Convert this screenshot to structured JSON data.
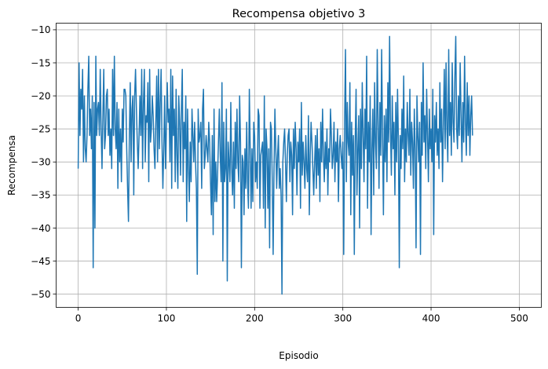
{
  "chart_data": {
    "type": "line",
    "title": "Recompensa objetivo 3",
    "xlabel": "Episodio",
    "ylabel": "Recompensa",
    "xlim": [
      -25,
      525
    ],
    "ylim": [
      -52,
      -9
    ],
    "xticks": [
      0,
      100,
      200,
      300,
      400,
      500
    ],
    "yticks": [
      -50,
      -45,
      -40,
      -35,
      -30,
      -25,
      -20,
      -15,
      -10
    ],
    "xtick_labels": [
      "0",
      "100",
      "200",
      "300",
      "400",
      "500"
    ],
    "ytick_labels": [
      "−50",
      "−45",
      "−40",
      "−35",
      "−30",
      "−25",
      "−20",
      "−15",
      "−10"
    ],
    "grid": true,
    "series": [
      {
        "color": "#1f77b4",
        "values": [
          -31,
          -15,
          -26,
          -19,
          -22,
          -16,
          -30,
          -20,
          -28,
          -30,
          -26,
          -19,
          -14,
          -26,
          -22,
          -28,
          -20,
          -46,
          -21,
          -40,
          -14,
          -26,
          -22,
          -21,
          -26,
          -16,
          -25,
          -31,
          -23,
          -16,
          -28,
          -26,
          -20,
          -19,
          -26,
          -22,
          -29,
          -25,
          -31,
          -16,
          -26,
          -14,
          -25,
          -28,
          -21,
          -34,
          -22,
          -30,
          -25,
          -33,
          -22,
          -27,
          -19,
          -19,
          -20,
          -28,
          -34,
          -39,
          -26,
          -18,
          -30,
          -22,
          -20,
          -35,
          -20,
          -16,
          -22,
          -27,
          -31,
          -26,
          -20,
          -26,
          -16,
          -31,
          -21,
          -16,
          -30,
          -23,
          -24,
          -18,
          -33,
          -16,
          -27,
          -25,
          -20,
          -23,
          -28,
          -31,
          -24,
          -17,
          -30,
          -16,
          -28,
          -21,
          -16,
          -27,
          -34,
          -28,
          -20,
          -31,
          -25,
          -18,
          -24,
          -22,
          -30,
          -16,
          -34,
          -17,
          -26,
          -22,
          -33,
          -19,
          -29,
          -34,
          -20,
          -24,
          -32,
          -22,
          -16,
          -33,
          -24,
          -28,
          -20,
          -39,
          -22,
          -31,
          -36,
          -27,
          -33,
          -22,
          -26,
          -30,
          -24,
          -30,
          -34,
          -47,
          -22,
          -27,
          -26,
          -24,
          -34,
          -22,
          -19,
          -31,
          -29,
          -26,
          -28,
          -30,
          -24,
          -27,
          -33,
          -38,
          -26,
          -41,
          -22,
          -36,
          -30,
          -36,
          -32,
          -27,
          -22,
          -29,
          -33,
          -18,
          -45,
          -24,
          -33,
          -31,
          -22,
          -48,
          -27,
          -30,
          -33,
          -21,
          -31,
          -35,
          -27,
          -37,
          -24,
          -31,
          -22,
          -30,
          -33,
          -20,
          -27,
          -46,
          -29,
          -30,
          -38,
          -28,
          -34,
          -24,
          -33,
          -37,
          -19,
          -28,
          -37,
          -28,
          -36,
          -24,
          -26,
          -33,
          -30,
          -34,
          -22,
          -23,
          -37,
          -29,
          -28,
          -27,
          -37,
          -20,
          -40,
          -25,
          -28,
          -37,
          -28,
          -43,
          -24,
          -25,
          -33,
          -44,
          -31,
          -22,
          -28,
          -34,
          -29,
          -26,
          -34,
          -31,
          -35,
          -50,
          -30,
          -27,
          -25,
          -30,
          -36,
          -29,
          -26,
          -25,
          -33,
          -27,
          -29,
          -38,
          -25,
          -31,
          -24,
          -28,
          -35,
          -27,
          -30,
          -25,
          -37,
          -21,
          -32,
          -27,
          -30,
          -34,
          -26,
          -31,
          -33,
          -23,
          -38,
          -29,
          -24,
          -27,
          -31,
          -35,
          -30,
          -26,
          -34,
          -25,
          -32,
          -28,
          -36,
          -24,
          -30,
          -22,
          -29,
          -33,
          -27,
          -31,
          -25,
          -35,
          -28,
          -30,
          -22,
          -26,
          -31,
          -29,
          -24,
          -33,
          -27,
          -30,
          -25,
          -36,
          -28,
          -26,
          -29,
          -31,
          -27,
          -44,
          -24,
          -13,
          -33,
          -21,
          -27,
          -29,
          -18,
          -38,
          -24,
          -32,
          -26,
          -44,
          -27,
          -19,
          -35,
          -28,
          -23,
          -40,
          -22,
          -31,
          -18,
          -26,
          -33,
          -22,
          -28,
          -14,
          -37,
          -24,
          -30,
          -20,
          -41,
          -28,
          -22,
          -35,
          -18,
          -27,
          -31,
          -13,
          -24,
          -34,
          -21,
          -29,
          -13,
          -26,
          -38,
          -23,
          -30,
          -22,
          -33,
          -18,
          -27,
          -11,
          -25,
          -32,
          -20,
          -28,
          -24,
          -35,
          -21,
          -30,
          -19,
          -27,
          -46,
          -26,
          -31,
          -22,
          -28,
          -17,
          -33,
          -25,
          -30,
          -21,
          -26,
          -29,
          -19,
          -32,
          -24,
          -27,
          -34,
          -22,
          -28,
          -43,
          -20,
          -26,
          -30,
          -24,
          -44,
          -21,
          -29,
          -15,
          -27,
          -23,
          -31,
          -19,
          -26,
          -33,
          -22,
          -28,
          -25,
          -30,
          -19,
          -41,
          -23,
          -27,
          -21,
          -29,
          -25,
          -31,
          -18,
          -27,
          -22,
          -33,
          -24,
          -16,
          -28,
          -15,
          -25,
          -30,
          -13,
          -26,
          -21,
          -29,
          -15,
          -24,
          -27,
          -17,
          -11,
          -25,
          -28,
          -20,
          -26,
          -15,
          -23,
          -30,
          -21,
          -27,
          -14,
          -24,
          -29,
          -18,
          -26,
          -20,
          -29,
          -23,
          -20,
          -26
        ],
        "name": ""
      }
    ]
  }
}
